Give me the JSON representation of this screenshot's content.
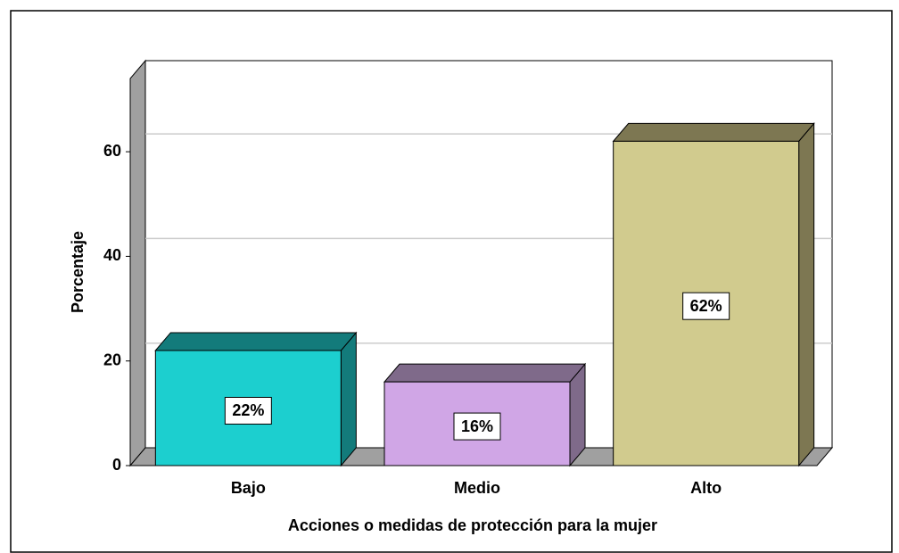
{
  "chart_data": {
    "type": "bar3d",
    "x_label": "Acciones o medidas de protección para la mujer",
    "y_label": "Porcentaje",
    "categories": [
      "Bajo",
      "Medio",
      "Alto"
    ],
    "values": [
      22,
      16,
      62
    ],
    "value_labels": [
      "22%",
      "16%",
      "62%"
    ],
    "colors": [
      "#1ccfcf",
      "#d0a6e6",
      "#d1cb8e"
    ],
    "side_colors": [
      "#137b7b",
      "#7f6a8a",
      "#7d7752"
    ],
    "ylim": [
      0,
      74
    ],
    "yticks": [
      0,
      20,
      40,
      60
    ],
    "grid": true
  }
}
